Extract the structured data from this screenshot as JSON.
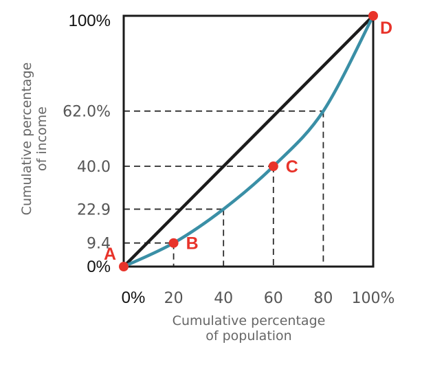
{
  "chart_data": {
    "type": "line",
    "xlabel": [
      "Cumulative percentage",
      "of population"
    ],
    "ylabel": [
      "Cumulative percentage",
      "of income"
    ],
    "xlim": [
      0,
      100
    ],
    "ylim": [
      0,
      100
    ],
    "x_ticks": [
      {
        "value": 0,
        "label": "0%",
        "style": "dark"
      },
      {
        "value": 20,
        "label": "20",
        "style": "light"
      },
      {
        "value": 40,
        "label": "40",
        "style": "light"
      },
      {
        "value": 60,
        "label": "60",
        "style": "light"
      },
      {
        "value": 80,
        "label": "80",
        "style": "light"
      },
      {
        "value": 100,
        "label": "100%",
        "style": "light"
      }
    ],
    "y_ticks": [
      {
        "value": 0,
        "label": "0%",
        "style": "dark"
      },
      {
        "value": 9.4,
        "label": "9.4",
        "style": "light"
      },
      {
        "value": 22.9,
        "label": "22.9",
        "style": "light"
      },
      {
        "value": 40,
        "label": "40.0",
        "style": "light"
      },
      {
        "value": 62,
        "label": "62.0%",
        "style": "light"
      },
      {
        "value": 100,
        "label": "100%",
        "style": "dark"
      }
    ],
    "series": [
      {
        "role": "equality-line",
        "color": "#1c1c1c",
        "x": [
          0,
          100
        ],
        "y": [
          0,
          100
        ]
      },
      {
        "role": "lorenz-curve",
        "color": "#3a8fa6",
        "x": [
          0,
          20,
          40,
          60,
          80,
          100
        ],
        "y": [
          0,
          9.4,
          22.9,
          40,
          62,
          100
        ]
      }
    ],
    "guides": [
      {
        "x": 20,
        "y": 9.4
      },
      {
        "x": 40,
        "y": 22.9
      },
      {
        "x": 60,
        "y": 40
      },
      {
        "x": 80,
        "y": 62
      }
    ],
    "points": [
      {
        "label": "A",
        "x": 0,
        "y": 0,
        "label_pos": "above-left"
      },
      {
        "label": "B",
        "x": 20,
        "y": 9.4,
        "label_pos": "right"
      },
      {
        "label": "C",
        "x": 60,
        "y": 40,
        "label_pos": "right"
      },
      {
        "label": "D",
        "x": 100,
        "y": 100,
        "label_pos": "below-right"
      }
    ],
    "point_color": "#e8332a"
  }
}
